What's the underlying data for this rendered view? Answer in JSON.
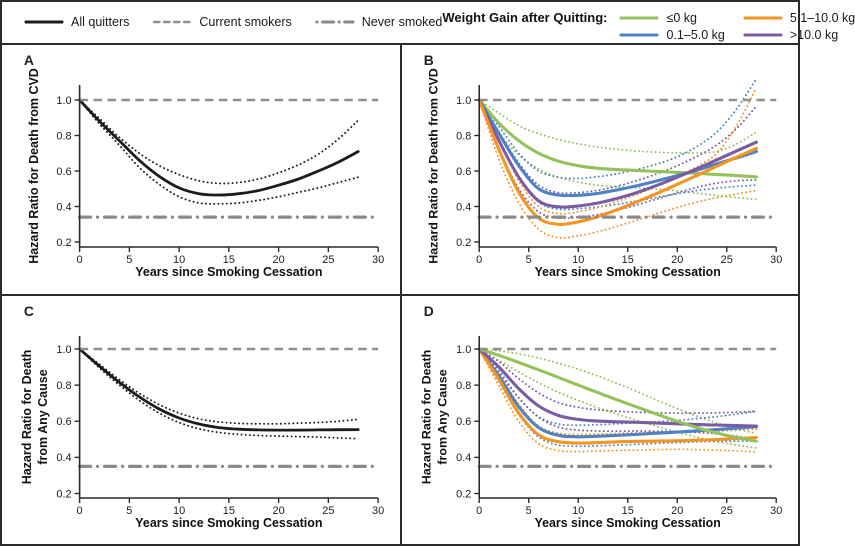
{
  "figure": {
    "legend_left": [
      {
        "label": "All quitters",
        "style": "solid",
        "color": "#1c1c1c"
      },
      {
        "label": "Current smokers",
        "style": "dashed",
        "color": "#8f8f8f"
      },
      {
        "label": "Never smoked",
        "style": "dashdot",
        "color": "#8a8a8a"
      }
    ],
    "legend_right_title": "Weight Gain after Quitting:",
    "legend_right": [
      {
        "label": "≤0 kg",
        "style": "solid",
        "color": "#94c25a"
      },
      {
        "label": "0.1–5.0 kg",
        "style": "solid",
        "color": "#4d82c4"
      },
      {
        "label": "5.1–10.0 kg",
        "style": "solid",
        "color": "#f5941f"
      },
      {
        "label": ">10.0 kg",
        "style": "solid",
        "color": "#7c5ba5"
      }
    ],
    "colors": {
      "black": "#1c1c1c",
      "green": "#94c25a",
      "blue": "#4d82c4",
      "orange": "#f5941f",
      "purple": "#7c5ba5",
      "reference_gray": "#8f8f8f"
    }
  },
  "chart_data": [
    {
      "id": "A",
      "type": "line",
      "ylabel_lines": [
        "Hazard Ratio for Death from CVD"
      ],
      "xlabel": "Years since Smoking Cessation",
      "x_ticks": [
        0,
        5,
        10,
        15,
        20,
        25,
        30
      ],
      "y_ticks": [
        0.2,
        0.4,
        0.6,
        0.8,
        1.0
      ],
      "xlim": [
        0,
        30
      ],
      "ylim": [
        0.2,
        1.12
      ],
      "reference_lines": [
        {
          "name": "Current smokers",
          "y": 1.0,
          "style": "dashed"
        },
        {
          "name": "Never smoked",
          "y": 0.34,
          "style": "dashdot"
        }
      ],
      "x_values": [
        0,
        2,
        4,
        6,
        8,
        10,
        12,
        14,
        16,
        18,
        20,
        22,
        24,
        26,
        28
      ],
      "series": [
        {
          "name": "All quitters 95% CI upper",
          "color": "#1c1c1c",
          "style": "dotted",
          "width": 1.9,
          "values": [
            1.0,
            0.895,
            0.79,
            0.7,
            0.63,
            0.58,
            0.545,
            0.53,
            0.535,
            0.555,
            0.59,
            0.635,
            0.695,
            0.78,
            0.885
          ]
        },
        {
          "name": "All quitters 95% CI lower",
          "color": "#1c1c1c",
          "style": "dotted",
          "width": 1.9,
          "values": [
            1.0,
            0.865,
            0.745,
            0.62,
            0.525,
            0.455,
            0.42,
            0.415,
            0.42,
            0.435,
            0.455,
            0.48,
            0.505,
            0.535,
            0.565
          ]
        },
        {
          "name": "All quitters",
          "color": "#1c1c1c",
          "style": "solid",
          "width": 2.8,
          "values": [
            1.0,
            0.88,
            0.77,
            0.66,
            0.57,
            0.505,
            0.472,
            0.465,
            0.472,
            0.49,
            0.52,
            0.555,
            0.6,
            0.65,
            0.71
          ]
        }
      ]
    },
    {
      "id": "B",
      "type": "line",
      "ylabel_lines": [
        "Hazard Ratio for Death from CVD"
      ],
      "xlabel": "Years since Smoking Cessation",
      "x_ticks": [
        0,
        5,
        10,
        15,
        20,
        25,
        30
      ],
      "y_ticks": [
        0.2,
        0.4,
        0.6,
        0.8,
        1.0
      ],
      "xlim": [
        0,
        30
      ],
      "ylim": [
        0.2,
        1.12
      ],
      "reference_lines": [
        {
          "name": "Current smokers",
          "y": 1.0,
          "style": "dashed"
        },
        {
          "name": "Never smoked",
          "y": 0.34,
          "style": "dashdot"
        }
      ],
      "x_values": [
        0,
        2,
        4,
        6,
        8,
        10,
        12,
        14,
        16,
        18,
        20,
        22,
        24,
        26,
        28
      ],
      "series": [
        {
          "name": "≤0 kg 95% CI upper",
          "color": "#94c25a",
          "style": "dotted",
          "width": 1.9,
          "values": [
            1.0,
            0.925,
            0.855,
            0.81,
            0.778,
            0.753,
            0.735,
            0.722,
            0.712,
            0.706,
            0.702,
            0.702,
            0.71,
            0.752,
            0.82
          ]
        },
        {
          "name": "≤0 kg 95% CI lower",
          "color": "#94c25a",
          "style": "dotted",
          "width": 1.9,
          "values": [
            1.0,
            0.815,
            0.69,
            0.612,
            0.565,
            0.537,
            0.52,
            0.511,
            0.505,
            0.498,
            0.488,
            0.475,
            0.462,
            0.45,
            0.44
          ]
        },
        {
          "name": "0.1–5.0 kg 95% CI upper",
          "color": "#4d82c4",
          "style": "dotted",
          "width": 1.9,
          "values": [
            1.0,
            0.85,
            0.7,
            0.6,
            0.565,
            0.558,
            0.568,
            0.585,
            0.61,
            0.64,
            0.68,
            0.738,
            0.82,
            0.95,
            1.12
          ]
        },
        {
          "name": "0.1–5.0 kg 95% CI lower",
          "color": "#4d82c4",
          "style": "dotted",
          "width": 1.9,
          "values": [
            1.0,
            0.77,
            0.565,
            0.425,
            0.385,
            0.388,
            0.398,
            0.413,
            0.432,
            0.452,
            0.472,
            0.49,
            0.503,
            0.513,
            0.52
          ]
        },
        {
          "name": ">10.0 kg 95% CI upper",
          "color": "#7c5ba5",
          "style": "dotted",
          "width": 1.9,
          "values": [
            1.0,
            0.82,
            0.645,
            0.52,
            0.478,
            0.478,
            0.492,
            0.515,
            0.547,
            0.585,
            0.63,
            0.683,
            0.747,
            0.84,
            0.965
          ]
        },
        {
          "name": ">10.0 kg 95% CI lower",
          "color": "#7c5ba5",
          "style": "dotted",
          "width": 1.9,
          "values": [
            1.0,
            0.72,
            0.5,
            0.37,
            0.335,
            0.34,
            0.355,
            0.38,
            0.41,
            0.443,
            0.477,
            0.508,
            0.532,
            0.545,
            0.55
          ]
        },
        {
          "name": "5.1–10.0 kg 95% CI upper",
          "color": "#f5941f",
          "style": "dotted",
          "width": 1.9,
          "values": [
            1.0,
            0.775,
            0.545,
            0.4,
            0.36,
            0.37,
            0.395,
            0.43,
            0.47,
            0.517,
            0.567,
            0.625,
            0.7,
            0.855,
            1.07
          ]
        },
        {
          "name": "5.1–10.0 kg 95% CI lower",
          "color": "#f5941f",
          "style": "dotted",
          "width": 1.9,
          "values": [
            1.0,
            0.665,
            0.42,
            0.272,
            0.225,
            0.235,
            0.258,
            0.29,
            0.324,
            0.36,
            0.394,
            0.425,
            0.45,
            0.47,
            0.49
          ]
        },
        {
          "name": "≤0 kg",
          "color": "#94c25a",
          "style": "solid",
          "width": 3.1,
          "values": [
            1.0,
            0.87,
            0.77,
            0.7,
            0.655,
            0.63,
            0.615,
            0.608,
            0.602,
            0.598,
            0.592,
            0.587,
            0.58,
            0.574,
            0.567
          ]
        },
        {
          "name": "0.1–5.0 kg",
          "color": "#4d82c4",
          "style": "solid",
          "width": 3.1,
          "values": [
            1.0,
            0.81,
            0.63,
            0.5,
            0.465,
            0.463,
            0.474,
            0.494,
            0.518,
            0.545,
            0.574,
            0.605,
            0.64,
            0.674,
            0.71
          ]
        },
        {
          "name": ">10.0 kg",
          "color": "#7c5ba5",
          "style": "solid",
          "width": 3.1,
          "values": [
            1.0,
            0.77,
            0.565,
            0.432,
            0.398,
            0.403,
            0.42,
            0.447,
            0.48,
            0.52,
            0.565,
            0.613,
            0.663,
            0.713,
            0.762
          ]
        },
        {
          "name": "5.1–10.0 kg",
          "color": "#f5941f",
          "style": "solid",
          "width": 3.1,
          "values": [
            1.0,
            0.72,
            0.48,
            0.335,
            0.3,
            0.313,
            0.343,
            0.383,
            0.428,
            0.475,
            0.525,
            0.575,
            0.627,
            0.678,
            0.728
          ]
        }
      ]
    },
    {
      "id": "C",
      "type": "line",
      "ylabel_lines": [
        "Hazard Ratio for Death",
        "from Any Cause"
      ],
      "xlabel": "Years since Smoking Cessation",
      "x_ticks": [
        0,
        5,
        10,
        15,
        20,
        25,
        30
      ],
      "y_ticks": [
        0.2,
        0.4,
        0.6,
        0.8,
        1.0
      ],
      "xlim": [
        0,
        30
      ],
      "ylim": [
        0.2,
        1.12
      ],
      "reference_lines": [
        {
          "name": "Current smokers",
          "y": 1.0,
          "style": "dashed"
        },
        {
          "name": "Never smoked",
          "y": 0.35,
          "style": "dashdot"
        }
      ],
      "x_values": [
        0,
        2,
        4,
        6,
        8,
        10,
        12,
        14,
        16,
        18,
        20,
        22,
        24,
        26,
        28
      ],
      "series": [
        {
          "name": "All quitters 95% CI upper",
          "color": "#1c1c1c",
          "style": "dotted",
          "width": 1.9,
          "values": [
            1.0,
            0.915,
            0.83,
            0.755,
            0.692,
            0.645,
            0.613,
            0.596,
            0.588,
            0.586,
            0.586,
            0.589,
            0.593,
            0.6,
            0.61
          ]
        },
        {
          "name": "All quitters 95% CI lower",
          "color": "#1c1c1c",
          "style": "dotted",
          "width": 1.9,
          "values": [
            1.0,
            0.895,
            0.8,
            0.715,
            0.645,
            0.593,
            0.558,
            0.538,
            0.527,
            0.521,
            0.518,
            0.515,
            0.512,
            0.508,
            0.503
          ]
        },
        {
          "name": "All quitters",
          "color": "#1c1c1c",
          "style": "solid",
          "width": 2.8,
          "values": [
            1.0,
            0.905,
            0.815,
            0.735,
            0.668,
            0.618,
            0.585,
            0.565,
            0.556,
            0.552,
            0.551,
            0.551,
            0.552,
            0.553,
            0.554
          ]
        }
      ]
    },
    {
      "id": "D",
      "type": "line",
      "ylabel_lines": [
        "Hazard Ratio for Death",
        "from Any Cause"
      ],
      "xlabel": "Years since Smoking Cessation",
      "x_ticks": [
        0,
        5,
        10,
        15,
        20,
        25,
        30
      ],
      "y_ticks": [
        0.2,
        0.4,
        0.6,
        0.8,
        1.0
      ],
      "xlim": [
        0,
        30
      ],
      "ylim": [
        0.2,
        1.12
      ],
      "reference_lines": [
        {
          "name": "Current smokers",
          "y": 1.0,
          "style": "dashed"
        },
        {
          "name": "Never smoked",
          "y": 0.35,
          "style": "dashdot"
        }
      ],
      "x_values": [
        0,
        2,
        4,
        6,
        8,
        10,
        12,
        14,
        16,
        18,
        20,
        22,
        24,
        26,
        28
      ],
      "series": [
        {
          "name": "≤0 kg 95% CI upper",
          "color": "#94c25a",
          "style": "dotted",
          "width": 1.9,
          "values": [
            1.0,
            0.99,
            0.973,
            0.95,
            0.921,
            0.888,
            0.85,
            0.808,
            0.763,
            0.716,
            0.67,
            0.628,
            0.59,
            0.558,
            0.532
          ]
        },
        {
          "name": "≤0 kg 95% CI lower",
          "color": "#94c25a",
          "style": "dotted",
          "width": 1.9,
          "values": [
            1.0,
            0.937,
            0.873,
            0.813,
            0.76,
            0.715,
            0.675,
            0.638,
            0.603,
            0.57,
            0.54,
            0.512,
            0.488,
            0.468,
            0.452
          ]
        },
        {
          "name": "0.1–5.0 kg 95% CI upper",
          "color": "#4d82c4",
          "style": "dotted",
          "width": 1.9,
          "values": [
            1.0,
            0.88,
            0.73,
            0.625,
            0.585,
            0.578,
            0.581,
            0.586,
            0.592,
            0.598,
            0.605,
            0.614,
            0.626,
            0.64,
            0.655
          ]
        },
        {
          "name": "0.1–5.0 kg 95% CI lower",
          "color": "#4d82c4",
          "style": "dotted",
          "width": 1.9,
          "values": [
            1.0,
            0.82,
            0.635,
            0.513,
            0.468,
            0.462,
            0.464,
            0.468,
            0.473,
            0.478,
            0.482,
            0.486,
            0.489,
            0.49,
            0.49
          ]
        },
        {
          "name": ">10.0 kg 95% CI upper",
          "color": "#7c5ba5",
          "style": "dotted",
          "width": 1.9,
          "values": [
            1.0,
            0.93,
            0.835,
            0.757,
            0.703,
            0.677,
            0.663,
            0.655,
            0.65,
            0.647,
            0.645,
            0.645,
            0.647,
            0.65,
            0.655
          ]
        },
        {
          "name": ">10.0 kg 95% CI lower",
          "color": "#7c5ba5",
          "style": "dotted",
          "width": 1.9,
          "values": [
            1.0,
            0.868,
            0.728,
            0.622,
            0.568,
            0.551,
            0.546,
            0.545,
            0.546,
            0.545,
            0.543,
            0.538,
            0.53,
            0.517,
            0.5
          ]
        },
        {
          "name": "5.1–10.0 kg 95% CI upper",
          "color": "#f5941f",
          "style": "dotted",
          "width": 1.9,
          "values": [
            1.0,
            0.858,
            0.695,
            0.575,
            0.535,
            0.527,
            0.529,
            0.533,
            0.537,
            0.539,
            0.54,
            0.542,
            0.545,
            0.55,
            0.556
          ]
        },
        {
          "name": "5.1–10.0 kg 95% CI lower",
          "color": "#f5941f",
          "style": "dotted",
          "width": 1.9,
          "values": [
            1.0,
            0.795,
            0.598,
            0.475,
            0.438,
            0.432,
            0.435,
            0.438,
            0.441,
            0.443,
            0.444,
            0.443,
            0.44,
            0.436,
            0.43
          ]
        },
        {
          "name": "0.1–5.0 kg",
          "color": "#4d82c4",
          "style": "solid",
          "width": 3.1,
          "values": [
            1.0,
            0.85,
            0.68,
            0.565,
            0.522,
            0.514,
            0.517,
            0.522,
            0.528,
            0.534,
            0.54,
            0.547,
            0.554,
            0.562,
            0.57
          ]
        },
        {
          "name": "5.1–10.0 kg",
          "color": "#f5941f",
          "style": "solid",
          "width": 3.1,
          "values": [
            1.0,
            0.83,
            0.645,
            0.525,
            0.487,
            0.479,
            0.482,
            0.486,
            0.489,
            0.49,
            0.492,
            0.495,
            0.499,
            0.504,
            0.51
          ]
        },
        {
          "name": ">10.0 kg",
          "color": "#7c5ba5",
          "style": "solid",
          "width": 3.1,
          "values": [
            1.0,
            0.9,
            0.78,
            0.685,
            0.632,
            0.61,
            0.601,
            0.597,
            0.594,
            0.59,
            0.586,
            0.582,
            0.579,
            0.576,
            0.573
          ]
        },
        {
          "name": "≤0 kg",
          "color": "#94c25a",
          "style": "solid",
          "width": 3.1,
          "values": [
            1.0,
            0.965,
            0.925,
            0.885,
            0.843,
            0.8,
            0.758,
            0.717,
            0.677,
            0.638,
            0.6,
            0.565,
            0.535,
            0.51,
            0.49
          ]
        }
      ]
    }
  ]
}
